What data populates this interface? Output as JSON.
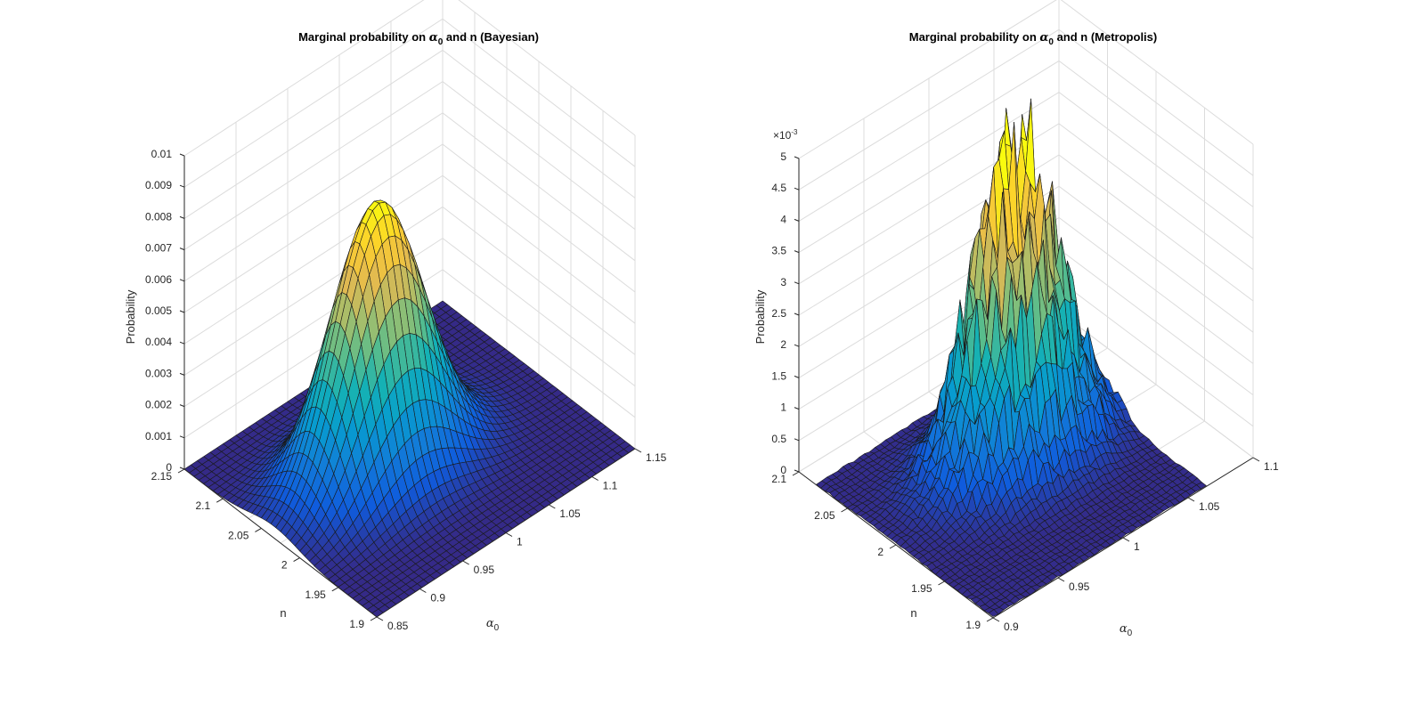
{
  "chart_data": [
    {
      "type": "surface",
      "title_before": "Marginal probability on ",
      "title_symbol": "α",
      "title_subscript": "0",
      "title_after": " and n (Bayesian)",
      "xlabel_symbol": "α",
      "xlabel_subscript": "0",
      "ylabel": "n",
      "zlabel": "Probability",
      "xlim": [
        0.85,
        1.15
      ],
      "ylim": [
        1.9,
        2.15
      ],
      "zlim": [
        0,
        0.01
      ],
      "x_ticks": [
        "0.85",
        "0.9",
        "0.95",
        "1",
        "1.05",
        "1.1",
        "1.15"
      ],
      "y_ticks": [
        "1.9",
        "1.95",
        "2",
        "2.05",
        "2.1",
        "2.15"
      ],
      "z_ticks": [
        "0",
        "0.001",
        "0.002",
        "0.003",
        "0.004",
        "0.005",
        "0.006",
        "0.007",
        "0.008",
        "0.009",
        "0.01"
      ],
      "z_exponent": "",
      "peak": {
        "x": 0.99,
        "y": 2.0,
        "z": 0.0086
      },
      "spread": {
        "x": 0.038,
        "y": 0.04
      },
      "grid": true,
      "colormap": "parula",
      "noise": 0
    },
    {
      "type": "surface",
      "title_before": "Marginal probability on ",
      "title_symbol": "α",
      "title_subscript": "0",
      "title_after": " and n (Metropolis)",
      "xlabel_symbol": "α",
      "xlabel_subscript": "0",
      "ylabel": "n",
      "zlabel": "Probability",
      "xlim": [
        0.9,
        1.1
      ],
      "ylim": [
        1.9,
        2.1
      ],
      "zlim": [
        0,
        0.005
      ],
      "x_ticks": [
        "0.9",
        "0.95",
        "1",
        "1.05",
        "1.1"
      ],
      "y_ticks": [
        "1.9",
        "1.95",
        "2",
        "2.05",
        "2.1"
      ],
      "z_ticks": [
        "0",
        "0.5",
        "1",
        "1.5",
        "2",
        "2.5",
        "3",
        "3.5",
        "4",
        "4.5",
        "5"
      ],
      "z_exponent": "×10-3",
      "z_exponent_base": "×10",
      "z_exponent_power": "-3",
      "peak": {
        "x": 0.99,
        "y": 2.0,
        "z": 0.0047
      },
      "spread": {
        "x": 0.022,
        "y": 0.03
      },
      "grid": true,
      "colormap": "parula",
      "noise": 0.35
    }
  ]
}
